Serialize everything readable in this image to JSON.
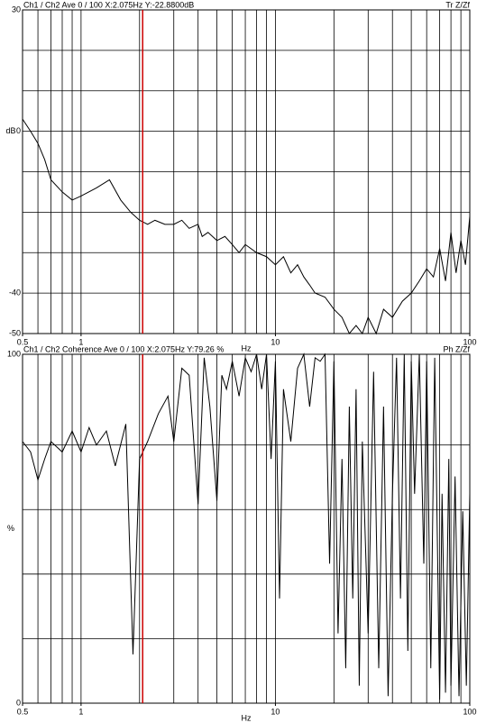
{
  "chart_data": [
    {
      "type": "line",
      "header_left": "Ch1 / Ch2  Ave 0 / 100  X:2.075Hz  Y:-22.8800dB",
      "header_right": "Tr Z/Zf",
      "xlabel": "Hz",
      "ylabel": "dB",
      "xscale": "log",
      "xlim": [
        0.5,
        100
      ],
      "ylim": [
        -50,
        30
      ],
      "xticks": [
        0.5,
        1,
        10,
        100
      ],
      "yticks": [
        30,
        0,
        -40,
        -50
      ],
      "xgrid": [
        0.6,
        0.7,
        0.8,
        0.9,
        1,
        2,
        3,
        4,
        5,
        6,
        7,
        8,
        9,
        10,
        20,
        30,
        40,
        50,
        60,
        70,
        80,
        90
      ],
      "ygrid": [
        20,
        10,
        0,
        -10,
        -20,
        -30,
        -40
      ],
      "cursor_x": 2.075,
      "cursor_color": "#cc0000",
      "x": [
        0.5,
        0.55,
        0.6,
        0.65,
        0.7,
        0.8,
        0.9,
        1.0,
        1.2,
        1.4,
        1.6,
        1.8,
        2.0,
        2.2,
        2.4,
        2.7,
        3.0,
        3.3,
        3.6,
        4.0,
        4.2,
        4.5,
        5.0,
        5.5,
        6.0,
        6.5,
        7.0,
        8.0,
        9.0,
        10,
        11,
        12,
        13,
        14,
        15,
        16,
        18,
        20,
        22,
        24,
        26,
        28,
        30,
        33,
        36,
        40,
        45,
        50,
        55,
        60,
        65,
        70,
        75,
        80,
        85,
        90,
        95,
        100
      ],
      "series": [
        {
          "color": "#000000",
          "values": [
            3,
            0,
            -3,
            -7,
            -12,
            -15,
            -17,
            -16,
            -14,
            -12,
            -17,
            -20,
            -22,
            -23,
            -22,
            -23,
            -23,
            -22,
            -24,
            -23,
            -26,
            -25,
            -27,
            -26,
            -28,
            -30,
            -28,
            -30,
            -31,
            -33,
            -31,
            -35,
            -33,
            -36,
            -38,
            -40,
            -41,
            -44,
            -46,
            -50,
            -48,
            -50,
            -46,
            -50,
            -44,
            -46,
            -42,
            -40,
            -37,
            -34,
            -36,
            -29,
            -37,
            -25,
            -35,
            -27,
            -33,
            -21
          ]
        }
      ]
    },
    {
      "type": "line",
      "header_left": "Ch1 / Ch2  Coherence Ave 0 / 100  X:2.075Hz  Y:79.26 %",
      "header_right": "Ph Z/Zf",
      "xlabel": "Hz",
      "ylabel": "%",
      "xscale": "log",
      "xlim": [
        0.5,
        100
      ],
      "ylim": [
        0,
        100
      ],
      "xticks": [
        0.5,
        1,
        10,
        100
      ],
      "yticks": [
        100,
        0
      ],
      "xgrid": [
        0.6,
        0.7,
        0.8,
        0.9,
        1,
        2,
        3,
        4,
        5,
        6,
        7,
        8,
        9,
        10,
        20,
        30,
        40,
        50,
        60,
        70,
        80,
        90
      ],
      "ygrid": [
        18.5,
        37,
        55.5,
        74
      ],
      "cursor_x": 2.075,
      "cursor_color": "#cc0000",
      "x": [
        0.5,
        0.55,
        0.6,
        0.65,
        0.7,
        0.8,
        0.9,
        1.0,
        1.1,
        1.2,
        1.35,
        1.5,
        1.7,
        1.85,
        2.0,
        2.2,
        2.5,
        2.8,
        3.0,
        3.3,
        3.6,
        4.0,
        4.3,
        4.6,
        5.0,
        5.3,
        5.6,
        6.0,
        6.5,
        7.0,
        7.5,
        8.0,
        8.5,
        9.0,
        9.5,
        10,
        10.5,
        11,
        12,
        13,
        14,
        15,
        16,
        17,
        18,
        19,
        20,
        21,
        22,
        23,
        24,
        25,
        26,
        27,
        28,
        30,
        32,
        34,
        36,
        38,
        40,
        42,
        44,
        46,
        48,
        50,
        52,
        55,
        58,
        60,
        63,
        66,
        70,
        72,
        75,
        78,
        80,
        84,
        88,
        92,
        96,
        100
      ],
      "series": [
        {
          "color": "#000000",
          "values": [
            75,
            72,
            64,
            70,
            75,
            72,
            78,
            72,
            79,
            74,
            78,
            68,
            80,
            14,
            70,
            75,
            83,
            88,
            75,
            96,
            94,
            57,
            99,
            85,
            58,
            94,
            90,
            98,
            88,
            99,
            95,
            100,
            90,
            100,
            70,
            98,
            30,
            90,
            75,
            96,
            100,
            85,
            99,
            98,
            100,
            40,
            98,
            20,
            70,
            10,
            85,
            30,
            90,
            5,
            75,
            20,
            95,
            10,
            85,
            2,
            60,
            99,
            30,
            100,
            15,
            98,
            60,
            100,
            40,
            98,
            10,
            99,
            1,
            60,
            3,
            70,
            5,
            65,
            2,
            55,
            5,
            60
          ]
        }
      ]
    }
  ]
}
